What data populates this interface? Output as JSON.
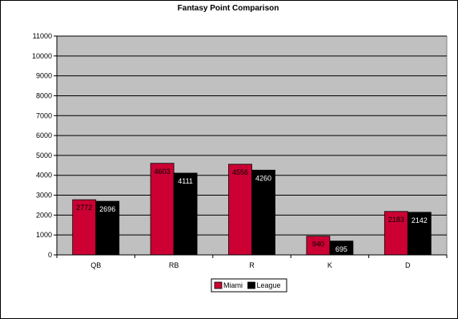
{
  "chart_data": {
    "type": "bar",
    "title": "Fantasy Point Comparison",
    "xlabel": "",
    "ylabel": "",
    "categories": [
      "QB",
      "RB",
      "R",
      "K",
      "D"
    ],
    "series": [
      {
        "name": "Miami",
        "color": "#cc0033",
        "values": [
          2772,
          4603,
          4556,
          940,
          2183
        ],
        "labels": [
          "2772",
          "4603",
          "4556",
          "940",
          "2183"
        ]
      },
      {
        "name": "League",
        "color": "#000000",
        "values": [
          2696,
          4111,
          4260,
          695,
          2142
        ],
        "labels": [
          "2696",
          "4111",
          "4260",
          "695",
          "2142"
        ]
      }
    ],
    "ylim": [
      0,
      11000
    ],
    "ytick_step": 1000,
    "yticks": [
      "0",
      "1000",
      "2000",
      "3000",
      "4000",
      "5000",
      "6000",
      "7000",
      "8000",
      "9000",
      "10000",
      "11000"
    ],
    "grid": true,
    "plot_background": "#c0c0c0",
    "legend_position": "bottom-center"
  }
}
